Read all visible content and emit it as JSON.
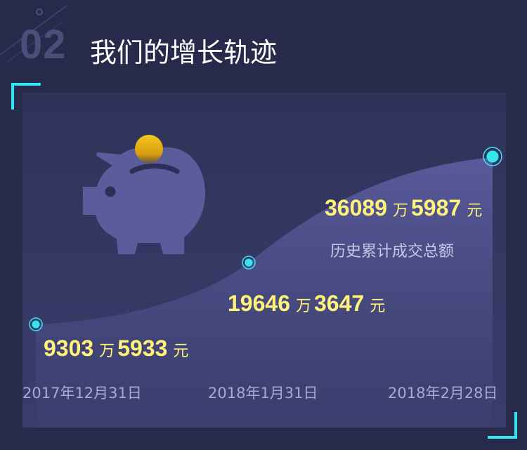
{
  "header": {
    "number": "02",
    "title": "我们的增长轨迹"
  },
  "points": [
    {
      "amount_wan": "9303",
      "unit_wan": "万",
      "amount_yuan": "5933",
      "unit_yuan": "元",
      "date": "2017年12月31日"
    },
    {
      "amount_wan": "19646",
      "unit_wan": "万",
      "amount_yuan": "3647",
      "unit_yuan": "元",
      "date": "2018年1月31日"
    },
    {
      "amount_wan": "36089",
      "unit_wan": "万",
      "amount_yuan": "5987",
      "unit_yuan": "元",
      "date": "2018年2月28日",
      "caption": "历史累计成交总额"
    }
  ],
  "icons": [
    "piggy-bank-icon",
    "coin-icon"
  ],
  "colors": {
    "background": "#272a4b",
    "accent_cyan": "#33e6f0",
    "value_yellow": "#fff37a",
    "piggy": "#5a5c9c",
    "coin": "#f2c41e"
  }
}
